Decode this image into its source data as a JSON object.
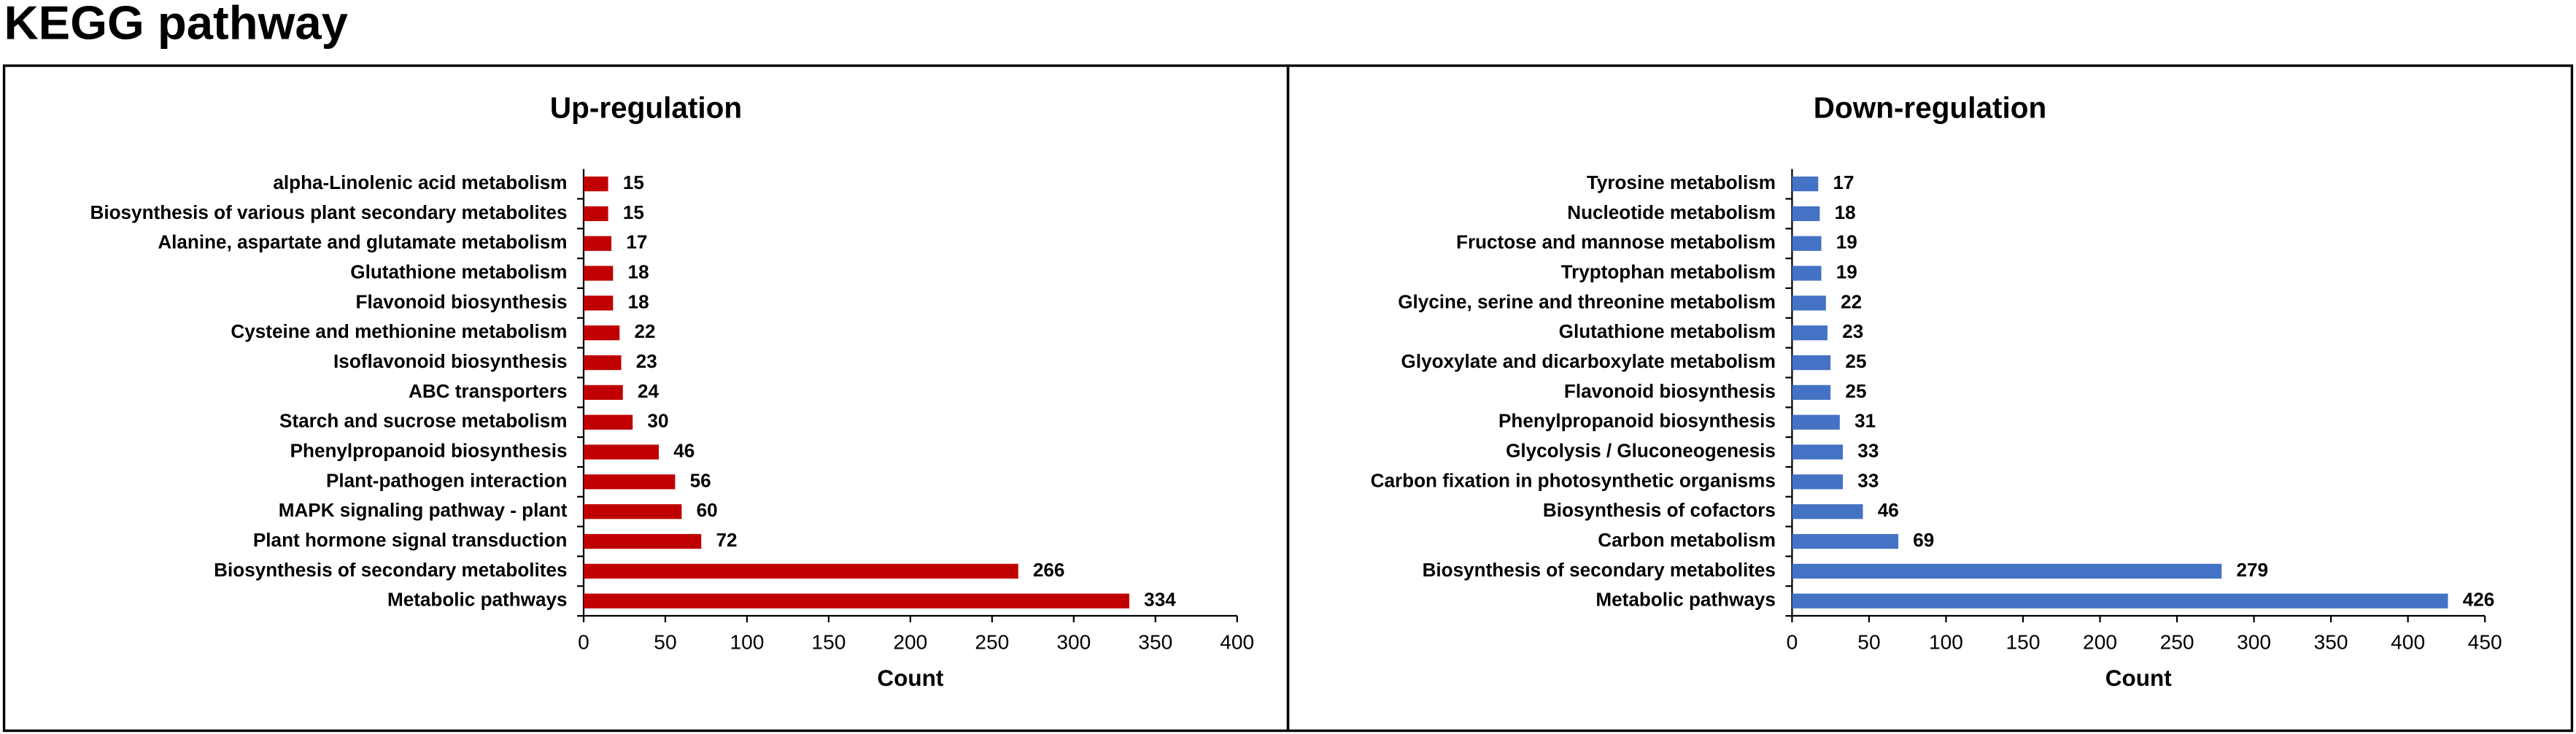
{
  "title": "KEGG pathway",
  "chart_data": [
    {
      "type": "barh",
      "title": "Up-regulation",
      "xlabel": "Count",
      "color": "#c00000",
      "categories": [
        "alpha-Linolenic acid metabolism",
        "Biosynthesis of various plant secondary metabolites",
        "Alanine, aspartate and glutamate metabolism",
        "Glutathione metabolism",
        "Flavonoid biosynthesis",
        "Cysteine and methionine metabolism",
        "Isoflavonoid biosynthesis",
        "ABC transporters",
        "Starch and sucrose metabolism",
        "Phenylpropanoid biosynthesis",
        "Plant-pathogen interaction",
        "MAPK signaling pathway - plant",
        "Plant hormone signal transduction",
        "Biosynthesis of secondary metabolites",
        "Metabolic pathways"
      ],
      "values": [
        15,
        15,
        17,
        18,
        18,
        22,
        23,
        24,
        30,
        46,
        56,
        60,
        72,
        266,
        334
      ],
      "xlim": [
        0,
        400
      ],
      "xticks": [
        0,
        50,
        100,
        150,
        200,
        250,
        300,
        350,
        400
      ]
    },
    {
      "type": "barh",
      "title": "Down-regulation",
      "xlabel": "Count",
      "color": "#4472c4",
      "categories": [
        "Tyrosine metabolism",
        "Nucleotide metabolism",
        "Fructose and mannose metabolism",
        "Tryptophan metabolism",
        "Glycine, serine and threonine metabolism",
        "Glutathione metabolism",
        "Glyoxylate and dicarboxylate metabolism",
        "Flavonoid biosynthesis",
        "Phenylpropanoid biosynthesis",
        "Glycolysis / Gluconeogenesis",
        "Carbon fixation in photosynthetic organisms",
        "Biosynthesis of cofactors",
        "Carbon metabolism",
        "Biosynthesis of secondary metabolites",
        "Metabolic pathways"
      ],
      "values": [
        17,
        18,
        19,
        19,
        22,
        23,
        25,
        25,
        31,
        33,
        33,
        46,
        69,
        279,
        426
      ],
      "xlim": [
        0,
        450
      ],
      "xticks": [
        0,
        50,
        100,
        150,
        200,
        250,
        300,
        350,
        400,
        450
      ]
    }
  ]
}
